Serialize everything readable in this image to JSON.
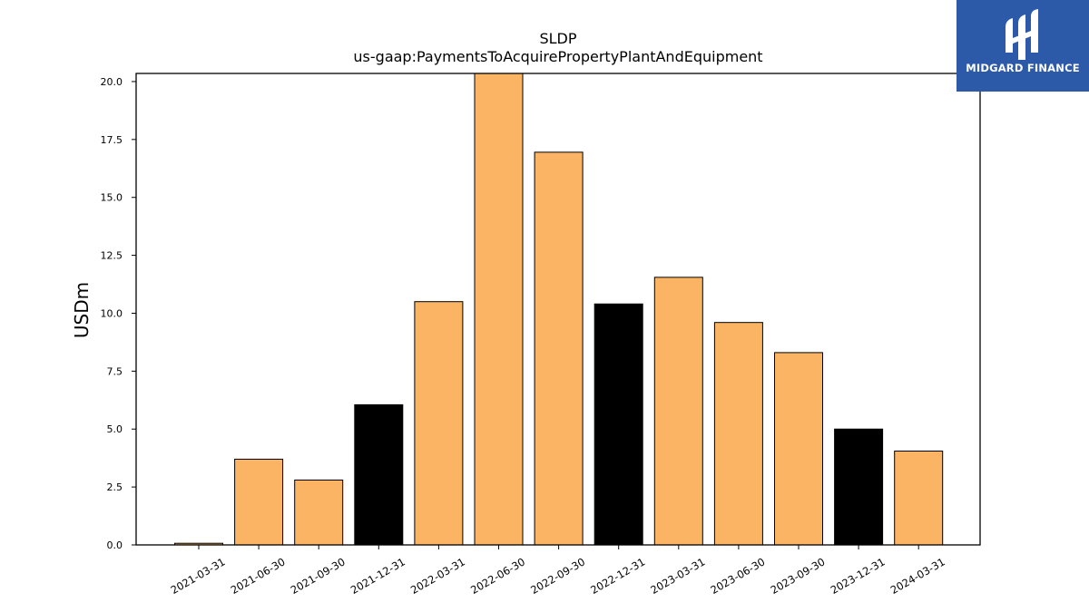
{
  "chart_data": {
    "type": "bar",
    "title": "SLDP",
    "subtitle": "us-gaap:PaymentsToAcquirePropertyPlantAndEquipment",
    "xlabel": "",
    "ylabel": "USDm",
    "ylim": [
      0,
      20.35
    ],
    "yticks": [
      "0.0",
      "2.5",
      "5.0",
      "7.5",
      "10.0",
      "12.5",
      "15.0",
      "17.5",
      "20.0"
    ],
    "grid": false,
    "categories": [
      "2021-03-31",
      "2021-06-30",
      "2021-09-30",
      "2021-12-31",
      "2022-03-31",
      "2022-06-30",
      "2022-09-30",
      "2022-12-31",
      "2023-03-31",
      "2023-06-30",
      "2023-09-30",
      "2023-12-31",
      "2024-03-31"
    ],
    "values": [
      0.07,
      3.7,
      2.8,
      6.05,
      10.5,
      20.35,
      16.95,
      10.4,
      11.55,
      9.6,
      8.3,
      5.0,
      4.05
    ],
    "bar_colors": [
      "#fbb464",
      "#fbb464",
      "#fbb464",
      "#000000",
      "#fbb464",
      "#fbb464",
      "#fbb464",
      "#000000",
      "#fbb464",
      "#fbb464",
      "#fbb464",
      "#000000",
      "#fbb464"
    ],
    "edge_color": "#000000"
  },
  "logo": {
    "text": "MIDGARD FINANCE",
    "background": "#2c5aa8"
  }
}
